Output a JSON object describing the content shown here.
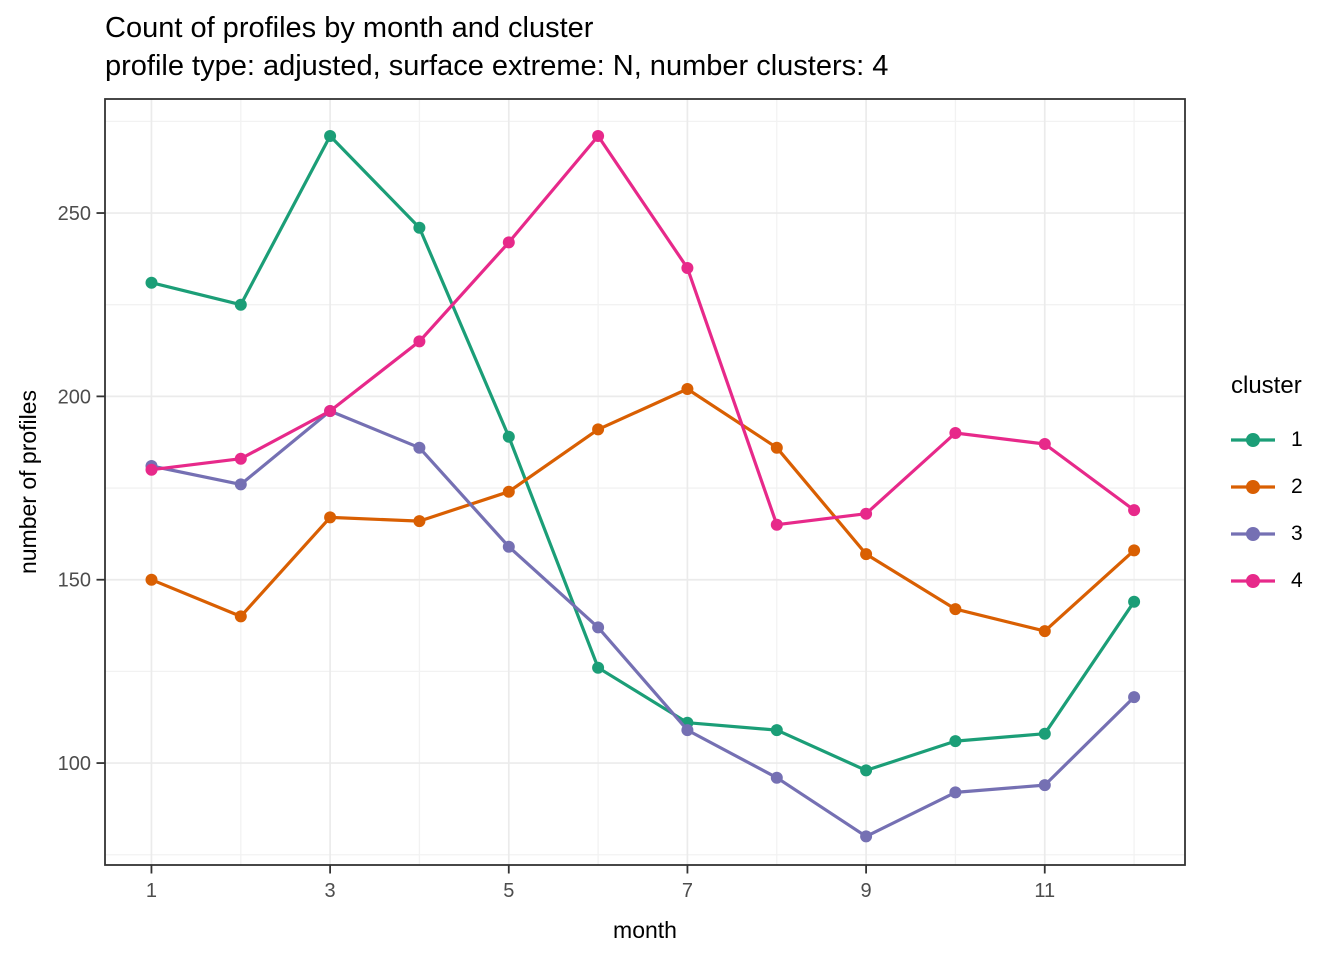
{
  "title": "Count of profiles by month and cluster",
  "subtitle": "profile type: adjusted, surface extreme: N, number clusters: 4",
  "chart_data": {
    "type": "line",
    "x": [
      1,
      2,
      3,
      4,
      5,
      6,
      7,
      8,
      9,
      10,
      11,
      12
    ],
    "series": [
      {
        "name": "1",
        "color": "#1B9E77",
        "values": [
          231,
          225,
          271,
          246,
          189,
          126,
          111,
          109,
          98,
          106,
          108,
          144
        ]
      },
      {
        "name": "2",
        "color": "#D95F02",
        "values": [
          150,
          140,
          167,
          166,
          174,
          191,
          202,
          186,
          157,
          142,
          136,
          158
        ]
      },
      {
        "name": "3",
        "color": "#7570B3",
        "values": [
          181,
          176,
          196,
          186,
          159,
          137,
          109,
          96,
          80,
          92,
          94,
          118
        ]
      },
      {
        "name": "4",
        "color": "#E7298A",
        "values": [
          180,
          183,
          196,
          215,
          242,
          271,
          235,
          165,
          168,
          190,
          187,
          169
        ]
      }
    ],
    "xlabel": "month",
    "ylabel": "number of profiles",
    "x_ticks": [
      1,
      3,
      5,
      7,
      9,
      11
    ],
    "x_minor_ticks": [
      2,
      4,
      6,
      8,
      10,
      12
    ],
    "y_ticks": [
      100,
      150,
      200,
      250
    ],
    "y_minor_ticks": [
      75,
      125,
      175,
      225,
      275
    ],
    "xlim": [
      0.48,
      12.57
    ],
    "ylim": [
      72.2,
      281.1
    ],
    "grid": true,
    "legend_title": "cluster",
    "legend_position": "right",
    "style": {
      "grid_major_color": "#ebebeb",
      "grid_minor_color": "#f2f2f2",
      "panel_border_color": "#333333",
      "tick_color": "#333333",
      "tick_label_color": "#4d4d4d",
      "text_color": "#000000",
      "background": "#ffffff"
    }
  }
}
